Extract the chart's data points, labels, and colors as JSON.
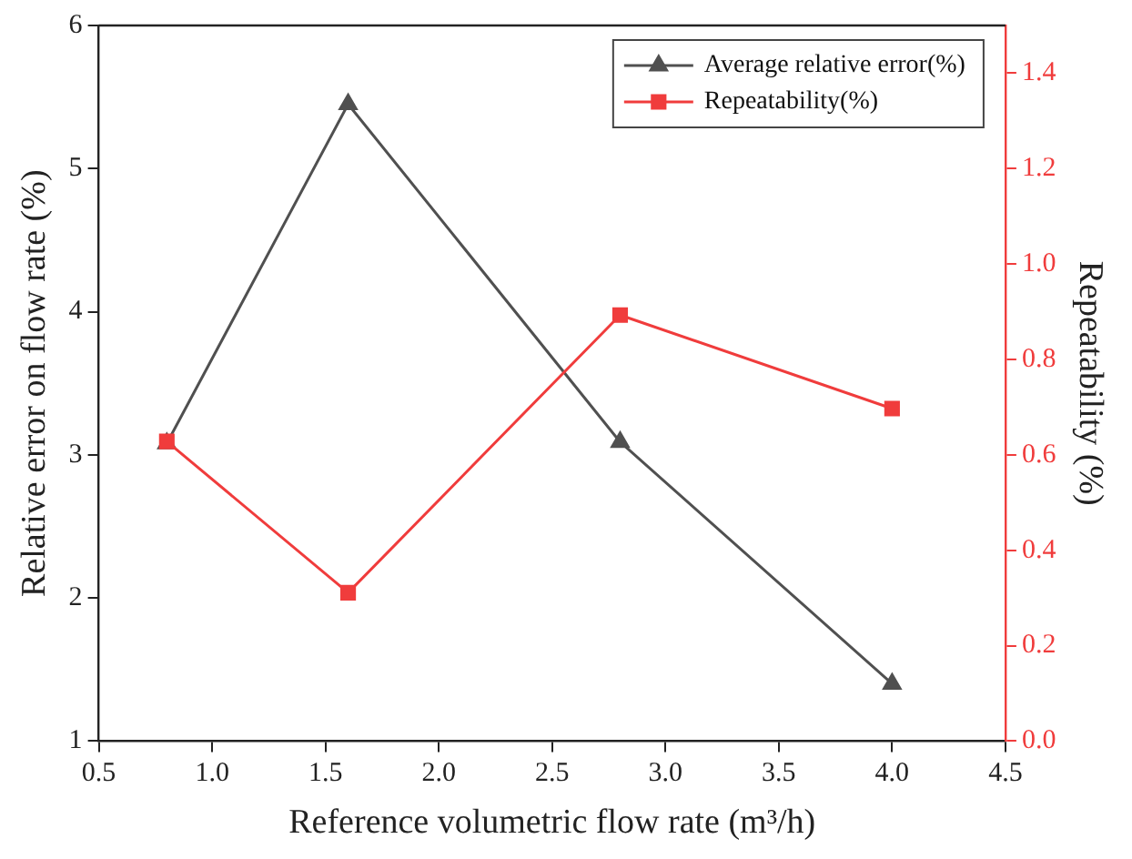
{
  "chart_data": {
    "type": "line",
    "xlabel": "Reference volumetric flow rate (m³/h)",
    "ylabel": "Relative error on flow rate (%)",
    "y2label": "Repeatability (%)",
    "x": [
      0.8,
      1.6,
      2.8,
      4.0
    ],
    "series": [
      {
        "name": "Average relative error(%)",
        "color": "#505050",
        "values": [
          3.08,
          5.45,
          3.09,
          1.4
        ],
        "marker": "triangle"
      },
      {
        "name": "Repeatability(%)",
        "color": "#f03c3c",
        "values": [
          0.628,
          0.311,
          0.893,
          0.697
        ],
        "marker": "square",
        "axis": "y2"
      }
    ],
    "xlim": [
      0.5,
      4.5
    ],
    "xticks": [
      0.5,
      {
        "value": 1,
        "label": "1.0"
      },
      1.5,
      {
        "value": 2,
        "label": "2.0"
      },
      2.5,
      {
        "value": 3,
        "label": "3.0"
      },
      3.5,
      {
        "value": 4,
        "label": "4.0"
      },
      4.5
    ],
    "ylim": [
      1,
      6
    ],
    "yticks": [
      1,
      2,
      3,
      4,
      5,
      6
    ],
    "y2lim": [
      0,
      1.5
    ],
    "y2ticks": [
      {
        "value": 0,
        "label": "0.0"
      },
      0.2,
      0.4,
      0.6,
      0.8,
      {
        "value": 1,
        "label": "1.0"
      },
      1.2,
      1.4
    ],
    "grid": false,
    "legend": "top right",
    "line_style": "solid"
  }
}
